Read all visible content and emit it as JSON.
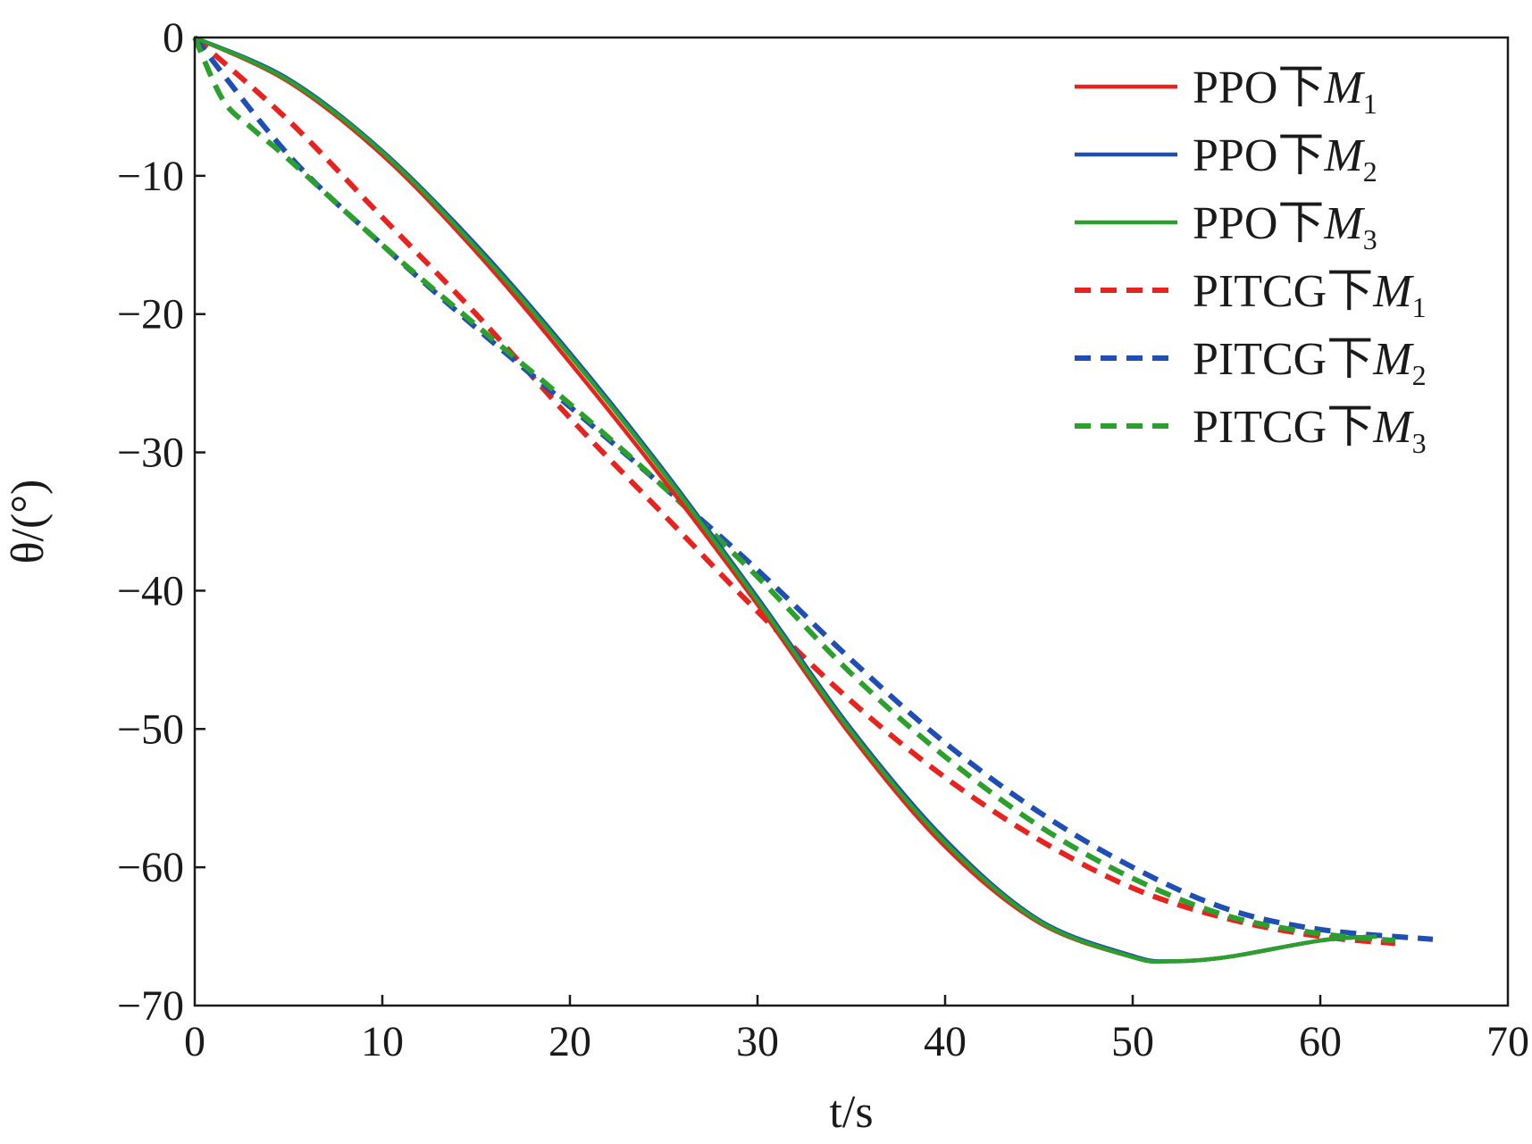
{
  "chart_data": {
    "type": "line",
    "xlabel": "t/s",
    "ylabel": "θ/(°)",
    "xlim": [
      0,
      70
    ],
    "ylim": [
      -70,
      0
    ],
    "xticks": [
      0,
      10,
      20,
      30,
      40,
      50,
      60,
      70
    ],
    "yticks": [
      0,
      -10,
      -20,
      -30,
      -40,
      -50,
      -60,
      -70
    ],
    "grid": false,
    "legend_position": "top-right",
    "series": [
      {
        "name": "PPO下M1",
        "legend_main": "PPO下",
        "legend_var": "M",
        "legend_sub": "1",
        "color": "#e8231f",
        "dash": "solid",
        "x": [
          0,
          5,
          10,
          15,
          20,
          25,
          30,
          35,
          40,
          45,
          50,
          52,
          55,
          60,
          63
        ],
        "y": [
          0,
          -3.2,
          -8.5,
          -15.5,
          -23.5,
          -32.0,
          -41.0,
          -50.5,
          -58.5,
          -64.0,
          -66.5,
          -66.8,
          -66.5,
          -65.3,
          -65.0
        ]
      },
      {
        "name": "PPO下M2",
        "legend_main": "PPO下",
        "legend_var": "M",
        "legend_sub": "2",
        "color": "#1f4fb5",
        "dash": "solid",
        "x": [
          0,
          5,
          10,
          15,
          20,
          25,
          30,
          35,
          40,
          45,
          50,
          52,
          55,
          60,
          63
        ],
        "y": [
          0,
          -3.0,
          -8.2,
          -15.0,
          -22.8,
          -31.3,
          -40.5,
          -50.0,
          -58.0,
          -63.8,
          -66.4,
          -66.8,
          -66.5,
          -65.3,
          -65.0
        ]
      },
      {
        "name": "PPO下M3",
        "legend_main": "PPO下",
        "legend_var": "M",
        "legend_sub": "3",
        "color": "#2ca02c",
        "dash": "solid",
        "x": [
          0,
          5,
          10,
          15,
          20,
          25,
          30,
          35,
          40,
          45,
          50,
          52,
          55,
          60,
          63
        ],
        "y": [
          0,
          -3.1,
          -8.3,
          -15.2,
          -23.0,
          -31.5,
          -40.7,
          -50.2,
          -58.2,
          -63.9,
          -66.5,
          -66.8,
          -66.5,
          -65.3,
          -65.0
        ]
      },
      {
        "name": "PITCG下M1",
        "legend_main": "PITCG下",
        "legend_var": "M",
        "legend_sub": "1",
        "color": "#e8231f",
        "dash": "dashed",
        "x": [
          0,
          5,
          10,
          15,
          20,
          25,
          30,
          35,
          40,
          45,
          50,
          55,
          60,
          64
        ],
        "y": [
          0,
          -6.0,
          -13.0,
          -20.0,
          -27.5,
          -34.5,
          -41.5,
          -48.0,
          -53.5,
          -58.0,
          -61.5,
          -63.7,
          -65.0,
          -65.5
        ]
      },
      {
        "name": "PITCG下M2",
        "legend_main": "PITCG下",
        "legend_var": "M",
        "legend_sub": "2",
        "color": "#1f4fb5",
        "dash": "dashed",
        "x": [
          0,
          5,
          10,
          15,
          20,
          25,
          30,
          35,
          40,
          45,
          50,
          55,
          60,
          66
        ],
        "y": [
          0,
          -8.5,
          -15.0,
          -21.0,
          -26.7,
          -32.5,
          -38.5,
          -45.0,
          -51.0,
          -56.0,
          -60.0,
          -63.0,
          -64.5,
          -65.2
        ]
      },
      {
        "name": "PITCG下M3",
        "legend_main": "PITCG下",
        "legend_var": "M",
        "legend_sub": "3",
        "color": "#2ca02c",
        "dash": "dashed",
        "x": [
          0,
          1.5,
          3,
          5,
          10,
          15,
          20,
          25,
          30,
          35,
          40,
          45,
          50,
          55,
          60,
          64
        ],
        "y": [
          0,
          -4.5,
          -6.5,
          -8.8,
          -15.0,
          -20.8,
          -26.5,
          -32.5,
          -39.0,
          -46.0,
          -52.0,
          -57.0,
          -60.8,
          -63.5,
          -64.8,
          -65.3
        ]
      }
    ]
  }
}
